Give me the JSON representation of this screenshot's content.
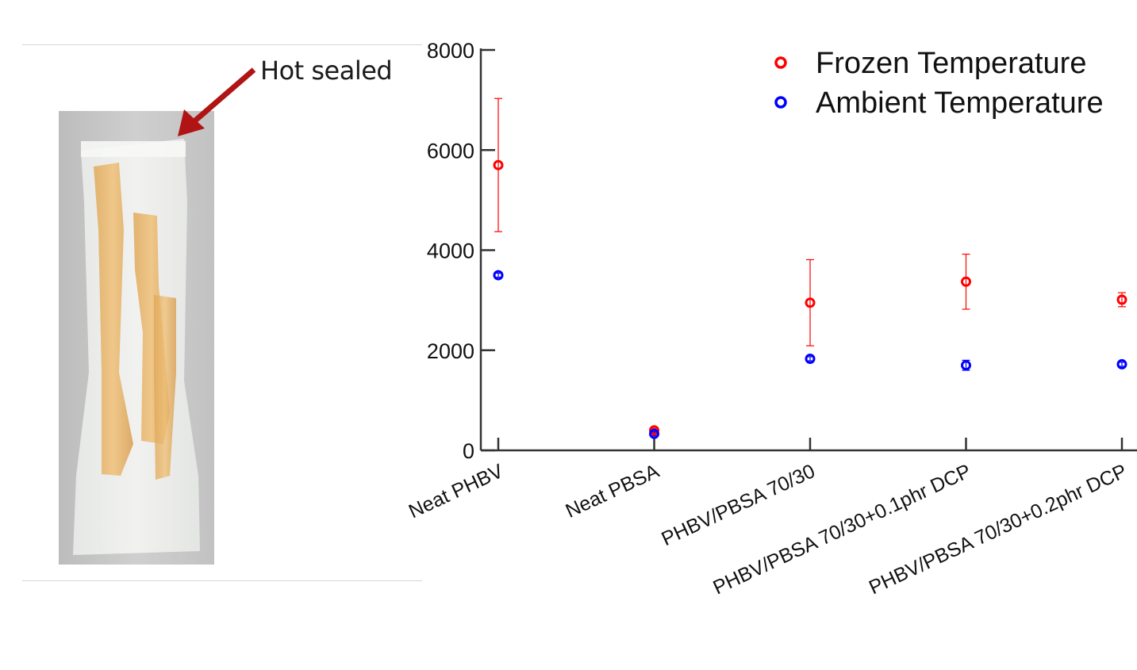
{
  "annotation": {
    "label": "Hot sealed"
  },
  "colors": {
    "frozen": "#ff0000",
    "ambient": "#0000ff",
    "axis": "#333333"
  },
  "chart_data": {
    "type": "scatter",
    "categories": [
      "Neat PHBV",
      "Neat PBSA",
      "PHBV/PBSA 70/30",
      "PHBV/PBSA 70/30+0.1phr DCP",
      "PHBV/PBSA 70/30+0.2phr DCP"
    ],
    "y_ticks": [
      0,
      2000,
      4000,
      6000,
      8000
    ],
    "y_tick_labels": [
      "0",
      "2000",
      "4000",
      "6000",
      "8000"
    ],
    "ylim": [
      0,
      8000
    ],
    "grid": false,
    "legend_position": "top-right",
    "series": [
      {
        "name": "Frozen Temperature",
        "color": "#ff0000",
        "values": [
          5700,
          400,
          2950,
          3370,
          3010
        ],
        "error": [
          1330,
          40,
          860,
          550,
          140
        ]
      },
      {
        "name": "Ambient Temperature",
        "color": "#0000ff",
        "values": [
          3500,
          330,
          1830,
          1700,
          1720
        ],
        "error": [
          40,
          40,
          40,
          100,
          40
        ]
      }
    ]
  }
}
